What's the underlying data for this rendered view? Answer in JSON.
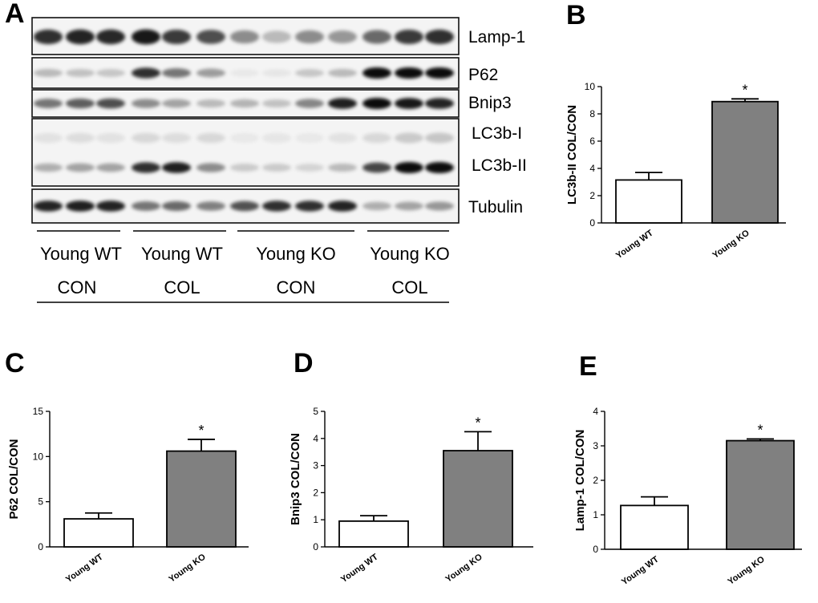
{
  "panels": {
    "a": "A",
    "b": "B",
    "c": "C",
    "d": "D",
    "e": "E"
  },
  "blot": {
    "bands": [
      "Lamp-1",
      "P62",
      "Bnip3",
      "LC3b-I",
      "LC3b-II",
      "Tubulin"
    ],
    "groups": [
      {
        "line1": "Young WT",
        "line2": "CON"
      },
      {
        "line1": "Young WT",
        "line2": "COL"
      },
      {
        "line1": "Young KO",
        "line2": "CON"
      },
      {
        "line1": "Young KO",
        "line2": "COL"
      }
    ]
  },
  "chart_data": [
    {
      "panel": "B",
      "type": "bar",
      "categories": [
        "Young WT",
        "Young KO"
      ],
      "values": [
        3.15,
        8.9
      ],
      "errors": [
        0.55,
        0.2
      ],
      "significance": [
        "",
        "*"
      ],
      "ylabel": "LC3b-II COL/CON",
      "ylim": [
        0,
        10
      ],
      "yticks": [
        "0",
        "2",
        "4",
        "6",
        "8",
        "10"
      ],
      "colors": [
        "#ffffff",
        "#808080"
      ]
    },
    {
      "panel": "C",
      "type": "bar",
      "categories": [
        "Young WT",
        "Young KO"
      ],
      "values": [
        3.1,
        10.6
      ],
      "errors": [
        0.65,
        1.3
      ],
      "significance": [
        "",
        "*"
      ],
      "ylabel": "P62 COL/CON",
      "ylim": [
        0,
        15
      ],
      "yticks": [
        "0",
        "5",
        "10",
        "15"
      ],
      "colors": [
        "#ffffff",
        "#808080"
      ]
    },
    {
      "panel": "D",
      "type": "bar",
      "categories": [
        "Young WT",
        "Young KO"
      ],
      "values": [
        0.95,
        3.55
      ],
      "errors": [
        0.2,
        0.7
      ],
      "significance": [
        "",
        "*"
      ],
      "ylabel": "Bnip3 COL/CON",
      "ylim": [
        0,
        5
      ],
      "yticks": [
        "0",
        "1",
        "2",
        "3",
        "4",
        "5"
      ],
      "colors": [
        "#ffffff",
        "#808080"
      ]
    },
    {
      "panel": "E",
      "type": "bar",
      "categories": [
        "Young WT",
        "Young KO"
      ],
      "values": [
        1.27,
        3.15
      ],
      "errors": [
        0.25,
        0.05
      ],
      "significance": [
        "",
        "*"
      ],
      "ylabel": "Lamp-1 COL/CON",
      "ylim": [
        0,
        4
      ],
      "yticks": [
        "0",
        "1",
        "2",
        "3",
        "4"
      ],
      "colors": [
        "#ffffff",
        "#808080"
      ]
    }
  ]
}
